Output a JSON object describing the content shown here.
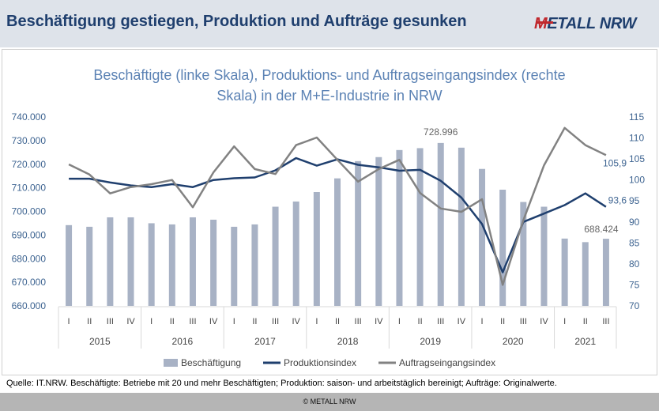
{
  "header": {
    "title": "Beschäftigung gestiegen, Produktion und Aufträge gesunken",
    "logo_m": "M",
    "logo_rest": "ETALL NRW"
  },
  "colors": {
    "header_bg": "#dee3ea",
    "title": "#1f3f6e",
    "chart_title": "#5b82b4",
    "axis_text": "#3e6491",
    "bar": "#a8b2c5",
    "produktion": "#1f3f6e",
    "auftrag": "#828282",
    "logo_accent": "#c0282d"
  },
  "chart_data": {
    "type": "bar",
    "title": "Beschäftigte (linke Skala), Produktions- und Auftragseingangsindex (rechte Skala) in der M+E-Industrie in NRW",
    "title_lines": [
      "Beschäftigte (linke Skala), Produktions- und Auftragseingangsindex (rechte",
      "Skala) in der M+E-Industrie in NRW"
    ],
    "quarters": [
      "I",
      "II",
      "III",
      "IV",
      "I",
      "II",
      "III",
      "IV",
      "I",
      "II",
      "III",
      "IV",
      "I",
      "II",
      "III",
      "IV",
      "I",
      "II",
      "III",
      "IV",
      "I",
      "II",
      "III",
      "IV",
      "I",
      "II",
      "III"
    ],
    "years": [
      {
        "label": "2015",
        "count": 4
      },
      {
        "label": "2016",
        "count": 4
      },
      {
        "label": "2017",
        "count": 4
      },
      {
        "label": "2018",
        "count": 4
      },
      {
        "label": "2019",
        "count": 4
      },
      {
        "label": "2020",
        "count": 4
      },
      {
        "label": "2021",
        "count": 3
      }
    ],
    "y_left": {
      "min": 660000,
      "max": 740000,
      "step": 10000,
      "ticks": [
        "660.000",
        "670.000",
        "680.000",
        "690.000",
        "700.000",
        "710.000",
        "720.000",
        "730.000",
        "740.000"
      ]
    },
    "y_right": {
      "min": 70,
      "max": 115,
      "step": 5,
      "ticks": [
        "70",
        "75",
        "80",
        "85",
        "90",
        "95",
        "100",
        "105",
        "110",
        "115"
      ]
    },
    "series": [
      {
        "name": "Beschäftigung",
        "type": "bar",
        "axis": "left",
        "values": [
          694200,
          693500,
          697500,
          697500,
          695000,
          694500,
          697500,
          696500,
          693500,
          694500,
          702000,
          704200,
          708200,
          714000,
          721300,
          723000,
          726000,
          726800,
          728996,
          727000,
          718000,
          709200,
          704000,
          702000,
          688500,
          687000,
          688424
        ]
      },
      {
        "name": "Produktionsindex",
        "type": "line",
        "axis": "right",
        "values": [
          100.3,
          100.3,
          99.4,
          98.7,
          98.3,
          99.0,
          98.3,
          100.0,
          100.4,
          100.6,
          102.3,
          105.2,
          103.4,
          104.9,
          103.6,
          103.0,
          102.2,
          102.4,
          99.8,
          95.8,
          89.5,
          78.0,
          90.0,
          92.0,
          94.0,
          96.8,
          93.6
        ]
      },
      {
        "name": "Auftragseingangsindex",
        "type": "line",
        "axis": "right",
        "values": [
          103.7,
          101.3,
          96.8,
          98.3,
          99.0,
          100.0,
          93.5,
          101.8,
          108.0,
          102.6,
          101.4,
          108.3,
          110.1,
          104.8,
          99.6,
          102.6,
          104.8,
          96.9,
          93.2,
          92.4,
          95.4,
          75.0,
          90.4,
          103.5,
          112.4,
          108.3,
          105.9
        ]
      }
    ],
    "data_labels": [
      {
        "text": "728.996",
        "series": "Beschäftigung",
        "index": 18
      },
      {
        "text": "688.424",
        "series": "Beschäftigung",
        "index": 26
      },
      {
        "text": "93,6",
        "series": "Produktionsindex",
        "index": 26
      },
      {
        "text": "105,9",
        "series": "Auftragseingangsindex",
        "index": 26
      }
    ],
    "legend_position": "bottom",
    "grid": false
  },
  "source_text": "Quelle: IT.NRW. Beschäftigte: Betriebe mit 20 und mehr Beschäftigten; Produktion: saison- und arbeitstäglich bereinigt; Aufträge: Originalwerte.",
  "footer_text": "© METALL NRW"
}
